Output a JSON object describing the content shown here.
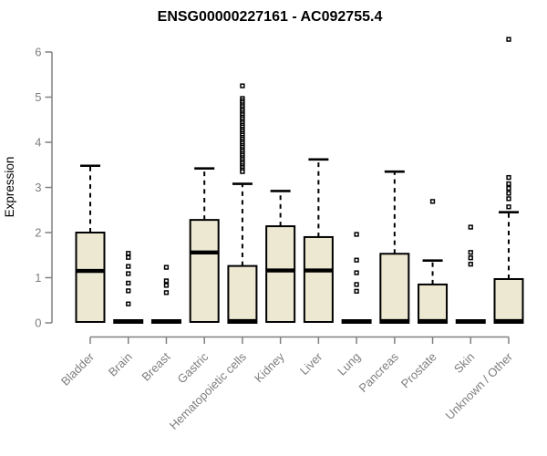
{
  "chart_data": {
    "type": "boxplot",
    "title": "ENSG00000227161 - AC092755.4",
    "xlabel": "",
    "ylabel": "Expression",
    "ylim": [
      0,
      6
    ],
    "yticks": [
      0,
      1,
      2,
      3,
      4,
      5,
      6
    ],
    "grid": false,
    "legend": "none",
    "colors": {
      "box_fill": "#ede8d1",
      "box_line": "#000000",
      "axis_line": "#808080",
      "axis_text": "#7e7e7e",
      "title_text": "#000000"
    },
    "categories": [
      "Bladder",
      "Brain",
      "Breast",
      "Gastric",
      "Hematopoietic cells",
      "Kidney",
      "Liver",
      "Lung",
      "Pancreas",
      "Prostate",
      "Skin",
      "Unknown / Other"
    ],
    "series": [
      {
        "name": "Bladder",
        "whisker_low": 0,
        "q1": 0.02,
        "median": 1.15,
        "q3": 2.0,
        "whisker_high": 3.48,
        "outliers": []
      },
      {
        "name": "Brain",
        "whisker_low": 0,
        "q1": 0.0,
        "median": 0.03,
        "q3": 0.06,
        "whisker_high": 0.06,
        "outliers": [
          1.54,
          1.45,
          1.25,
          1.09,
          0.88,
          0.71,
          0.42
        ]
      },
      {
        "name": "Breast",
        "whisker_low": 0,
        "q1": 0.0,
        "median": 0.03,
        "q3": 0.06,
        "whisker_high": 0.06,
        "outliers": [
          1.23,
          0.93,
          0.83,
          0.67
        ]
      },
      {
        "name": "Gastric",
        "whisker_low": 0,
        "q1": 0.02,
        "median": 1.56,
        "q3": 2.28,
        "whisker_high": 3.42,
        "outliers": []
      },
      {
        "name": "Hematopoietic cells",
        "whisker_low": 0,
        "q1": 0.0,
        "median": 0.04,
        "q3": 1.26,
        "whisker_high": 3.08,
        "outliers": [
          5.25,
          4.97,
          4.92,
          4.88,
          4.83,
          4.79,
          4.74,
          4.7,
          4.65,
          4.61,
          4.56,
          4.52,
          4.47,
          4.43,
          4.38,
          4.34,
          4.29,
          4.25,
          4.2,
          4.16,
          4.11,
          4.07,
          4.02,
          3.98,
          3.93,
          3.89,
          3.84,
          3.8,
          3.75,
          3.71,
          3.66,
          3.62,
          3.57,
          3.53,
          3.48,
          3.44,
          3.39,
          3.35
        ]
      },
      {
        "name": "Kidney",
        "whisker_low": 0,
        "q1": 0.02,
        "median": 1.16,
        "q3": 2.14,
        "whisker_high": 2.92,
        "outliers": []
      },
      {
        "name": "Liver",
        "whisker_low": 0,
        "q1": 0.02,
        "median": 1.16,
        "q3": 1.9,
        "whisker_high": 3.62,
        "outliers": []
      },
      {
        "name": "Lung",
        "whisker_low": 0,
        "q1": 0.0,
        "median": 0.03,
        "q3": 0.06,
        "whisker_high": 0.06,
        "outliers": [
          1.96,
          1.39,
          1.11,
          0.85,
          0.7
        ]
      },
      {
        "name": "Pancreas",
        "whisker_low": 0,
        "q1": 0.0,
        "median": 0.04,
        "q3": 1.53,
        "whisker_high": 3.35,
        "outliers": []
      },
      {
        "name": "Prostate",
        "whisker_low": 0,
        "q1": 0.0,
        "median": 0.04,
        "q3": 0.85,
        "whisker_high": 1.38,
        "outliers": [
          2.69
        ]
      },
      {
        "name": "Skin",
        "whisker_low": 0,
        "q1": 0.0,
        "median": 0.03,
        "q3": 0.06,
        "whisker_high": 0.06,
        "outliers": [
          2.12,
          1.56,
          1.44,
          1.3
        ]
      },
      {
        "name": "Unknown / Other",
        "whisker_low": 0,
        "q1": 0.0,
        "median": 0.04,
        "q3": 0.97,
        "whisker_high": 2.45,
        "outliers": [
          6.28,
          3.22,
          3.08,
          2.98,
          2.87,
          2.75,
          2.57
        ]
      }
    ]
  }
}
